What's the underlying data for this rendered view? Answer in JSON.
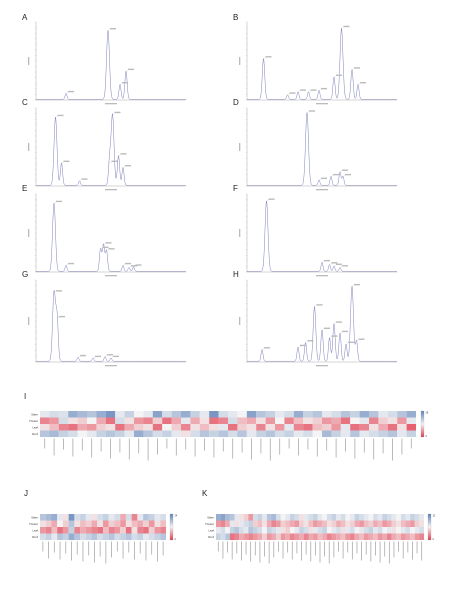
{
  "panels": [
    {
      "letter": "A",
      "peaks": [
        [
          0.48,
          0.93
        ],
        [
          0.2,
          0.08
        ],
        [
          0.56,
          0.2
        ],
        [
          0.6,
          0.38
        ]
      ]
    },
    {
      "letter": "B",
      "peaks": [
        [
          0.11,
          0.55
        ],
        [
          0.27,
          0.06
        ],
        [
          0.34,
          0.1
        ],
        [
          0.41,
          0.1
        ],
        [
          0.48,
          0.12
        ],
        [
          0.58,
          0.3
        ],
        [
          0.63,
          0.96
        ],
        [
          0.7,
          0.4
        ],
        [
          0.74,
          0.2
        ]
      ]
    },
    {
      "letter": "C",
      "peaks": [
        [
          0.13,
          0.92
        ],
        [
          0.17,
          0.3
        ],
        [
          0.29,
          0.06
        ],
        [
          0.49,
          0.3
        ],
        [
          0.51,
          0.96
        ],
        [
          0.55,
          0.4
        ],
        [
          0.58,
          0.24
        ]
      ]
    },
    {
      "letter": "D",
      "peaks": [
        [
          0.4,
          0.98
        ],
        [
          0.48,
          0.07
        ],
        [
          0.56,
          0.12
        ],
        [
          0.62,
          0.18
        ],
        [
          0.64,
          0.12
        ]
      ]
    },
    {
      "letter": "E",
      "peaks": [
        [
          0.12,
          0.92
        ],
        [
          0.2,
          0.08
        ],
        [
          0.43,
          0.3
        ],
        [
          0.45,
          0.36
        ],
        [
          0.47,
          0.28
        ],
        [
          0.58,
          0.08
        ],
        [
          0.62,
          0.05
        ],
        [
          0.65,
          0.06
        ]
      ]
    },
    {
      "letter": "F",
      "peaks": [
        [
          0.13,
          0.95
        ],
        [
          0.5,
          0.12
        ],
        [
          0.55,
          0.09
        ],
        [
          0.58,
          0.07
        ],
        [
          0.62,
          0.05
        ]
      ]
    },
    {
      "letter": "G",
      "peaks": [
        [
          0.12,
          0.88
        ],
        [
          0.14,
          0.55
        ],
        [
          0.28,
          0.05
        ],
        [
          0.38,
          0.04
        ],
        [
          0.46,
          0.06
        ],
        [
          0.5,
          0.04
        ]
      ]
    },
    {
      "letter": "H",
      "peaks": [
        [
          0.1,
          0.15
        ],
        [
          0.34,
          0.18
        ],
        [
          0.39,
          0.24
        ],
        [
          0.45,
          0.7
        ],
        [
          0.5,
          0.4
        ],
        [
          0.55,
          0.3
        ],
        [
          0.58,
          0.48
        ],
        [
          0.62,
          0.36
        ],
        [
          0.66,
          0.22
        ],
        [
          0.7,
          0.96
        ],
        [
          0.73,
          0.26
        ]
      ]
    }
  ],
  "heatmap_letters": [
    "I",
    "J",
    "K"
  ],
  "heatmaps": [
    {
      "rows": [
        "Stem",
        "Flower",
        "Leaf",
        "Root"
      ],
      "n_cols": 40,
      "colorbar_ticks": [
        "28",
        "0"
      ],
      "col_labels_count": 40,
      "matrix": [
        [
          0.45,
          0.4,
          0.42,
          0.2,
          0.25,
          0.3,
          0.2,
          0.1,
          0.45,
          0.35,
          0.5,
          0.45,
          0.15,
          0.4,
          0.3,
          0.2,
          0.35,
          0.45,
          0.1,
          0.4,
          0.45,
          0.5,
          0.15,
          0.3,
          0.35,
          0.45,
          0.4,
          0.2,
          0.35,
          0.3,
          0.45,
          0.4,
          0.3,
          0.35,
          0.2,
          0.3,
          0.45,
          0.4,
          0.3,
          0.2
        ],
        [
          0.8,
          0.75,
          0.4,
          0.55,
          0.6,
          0.5,
          0.7,
          0.85,
          0.4,
          0.55,
          0.75,
          0.8,
          0.6,
          0.85,
          0.7,
          0.45,
          0.7,
          0.55,
          0.85,
          0.8,
          0.4,
          0.65,
          0.7,
          0.55,
          0.75,
          0.5,
          0.8,
          0.65,
          0.55,
          0.6,
          0.75,
          0.7,
          0.85,
          0.5,
          0.45,
          0.8,
          0.6,
          0.55,
          0.75,
          0.45
        ],
        [
          0.55,
          0.65,
          0.8,
          0.85,
          0.7,
          0.75,
          0.6,
          0.55,
          0.85,
          0.7,
          0.6,
          0.55,
          0.85,
          0.5,
          0.6,
          0.8,
          0.55,
          0.65,
          0.55,
          0.45,
          0.85,
          0.6,
          0.55,
          0.8,
          0.55,
          0.75,
          0.45,
          0.8,
          0.85,
          0.65,
          0.6,
          0.75,
          0.45,
          0.85,
          0.8,
          0.55,
          0.7,
          0.85,
          0.55,
          0.9
        ],
        [
          0.3,
          0.25,
          0.35,
          0.4,
          0.5,
          0.45,
          0.35,
          0.3,
          0.35,
          0.45,
          0.2,
          0.3,
          0.4,
          0.35,
          0.45,
          0.55,
          0.4,
          0.3,
          0.35,
          0.3,
          0.4,
          0.3,
          0.45,
          0.35,
          0.3,
          0.4,
          0.35,
          0.45,
          0.4,
          0.5,
          0.25,
          0.35,
          0.45,
          0.3,
          0.45,
          0.4,
          0.35,
          0.3,
          0.45,
          0.35
        ]
      ]
    },
    {
      "rows": [
        "Stem",
        "Flower",
        "Leaf",
        "Root"
      ],
      "n_cols": 22,
      "colorbar_ticks": [
        "24",
        "0"
      ],
      "col_labels_count": 22,
      "matrix": [
        [
          0.3,
          0.25,
          0.2,
          0.45,
          0.55,
          0.1,
          0.4,
          0.35,
          0.45,
          0.55,
          0.4,
          0.35,
          0.45,
          0.4,
          0.7,
          0.4,
          0.8,
          0.45,
          0.3,
          0.35,
          0.45,
          0.4
        ],
        [
          0.55,
          0.6,
          0.7,
          0.5,
          0.6,
          0.3,
          0.55,
          0.65,
          0.6,
          0.7,
          0.55,
          0.75,
          0.6,
          0.65,
          0.75,
          0.55,
          0.65,
          0.7,
          0.6,
          0.75,
          0.55,
          0.65
        ],
        [
          0.75,
          0.8,
          0.65,
          0.85,
          0.75,
          0.35,
          0.8,
          0.7,
          0.75,
          0.8,
          0.85,
          0.65,
          0.8,
          0.75,
          0.6,
          0.85,
          0.55,
          0.8,
          0.85,
          0.6,
          0.75,
          0.8
        ],
        [
          0.4,
          0.35,
          0.45,
          0.3,
          0.35,
          0.2,
          0.3,
          0.4,
          0.35,
          0.3,
          0.4,
          0.35,
          0.3,
          0.4,
          0.35,
          0.3,
          0.4,
          0.35,
          0.45,
          0.4,
          0.35,
          0.3
        ]
      ]
    },
    {
      "rows": [
        "Stem",
        "Flower",
        "Leaf",
        "Root"
      ],
      "n_cols": 45,
      "colorbar_ticks": [
        "32",
        "0"
      ],
      "col_labels_count": 45,
      "matrix": [
        [
          0.2,
          0.15,
          0.25,
          0.3,
          0.45,
          0.55,
          0.6,
          0.75,
          0.4,
          0.35,
          0.45,
          0.3,
          0.25,
          0.4,
          0.5,
          0.45,
          0.35,
          0.4,
          0.55,
          0.45,
          0.4,
          0.35,
          0.45,
          0.5,
          0.4,
          0.35,
          0.45,
          0.4,
          0.5,
          0.45,
          0.35,
          0.4,
          0.45,
          0.5,
          0.4,
          0.45,
          0.35,
          0.4,
          0.45,
          0.5,
          0.4,
          0.45,
          0.35,
          0.4,
          0.45
        ],
        [
          0.75,
          0.8,
          0.7,
          0.45,
          0.55,
          0.45,
          0.4,
          0.35,
          0.6,
          0.65,
          0.55,
          0.7,
          0.8,
          0.75,
          0.6,
          0.65,
          0.7,
          0.75,
          0.6,
          0.55,
          0.65,
          0.75,
          0.7,
          0.65,
          0.55,
          0.6,
          0.7,
          0.65,
          0.55,
          0.6,
          0.7,
          0.75,
          0.65,
          0.6,
          0.7,
          0.65,
          0.75,
          0.7,
          0.6,
          0.55,
          0.65,
          0.7,
          0.75,
          0.6,
          0.55
        ],
        [
          0.45,
          0.4,
          0.5,
          0.35,
          0.3,
          0.4,
          0.45,
          0.3,
          0.35,
          0.4,
          0.5,
          0.35,
          0.4,
          0.45,
          0.55,
          0.6,
          0.5,
          0.45,
          0.35,
          0.4,
          0.55,
          0.45,
          0.4,
          0.35,
          0.5,
          0.45,
          0.4,
          0.55,
          0.45,
          0.4,
          0.5,
          0.45,
          0.4,
          0.35,
          0.45,
          0.4,
          0.5,
          0.45,
          0.55,
          0.5,
          0.45,
          0.4,
          0.5,
          0.45,
          0.4
        ],
        [
          0.35,
          0.4,
          0.3,
          0.85,
          0.8,
          0.7,
          0.75,
          0.8,
          0.75,
          0.7,
          0.6,
          0.75,
          0.7,
          0.6,
          0.75,
          0.7,
          0.8,
          0.75,
          0.7,
          0.8,
          0.7,
          0.75,
          0.65,
          0.7,
          0.8,
          0.75,
          0.7,
          0.65,
          0.75,
          0.8,
          0.7,
          0.65,
          0.75,
          0.7,
          0.65,
          0.75,
          0.7,
          0.8,
          0.7,
          0.65,
          0.75,
          0.7,
          0.65,
          0.75,
          0.8
        ]
      ]
    }
  ],
  "colors": {
    "low": "#5b7fb8",
    "mid": "#f4f4f4",
    "high": "#e23b4e",
    "trace": "#6d72b3"
  }
}
